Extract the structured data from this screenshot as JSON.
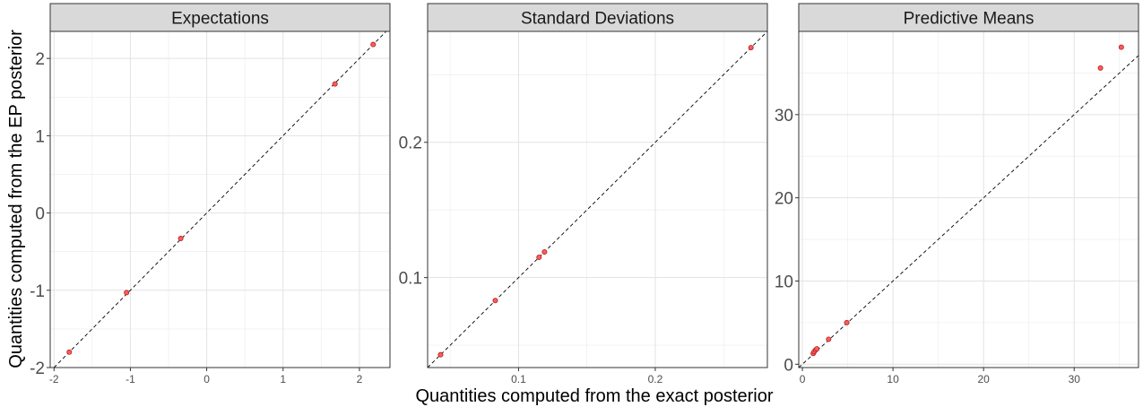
{
  "figure": {
    "xlabel": "Quantities computed from the exact posterior",
    "ylabel": "Quantities computed from the EP posterior"
  },
  "chart_data": [
    {
      "type": "scatter",
      "title": "Expectations",
      "xlim": [
        -2.05,
        2.4
      ],
      "ylim": [
        -2.0,
        2.35
      ],
      "xticks": [
        -2,
        -1,
        0,
        1,
        2
      ],
      "xtick_labels": [
        "-2",
        "-1",
        "0",
        "1",
        "2"
      ],
      "yticks": [
        -2,
        -1,
        0,
        1,
        2
      ],
      "ytick_labels": [
        "-2",
        "-1",
        "0",
        "1",
        "2"
      ],
      "points": [
        {
          "x": -1.8,
          "y": -1.8
        },
        {
          "x": -1.05,
          "y": -1.03
        },
        {
          "x": -0.34,
          "y": -0.33
        },
        {
          "x": 1.68,
          "y": 1.67
        },
        {
          "x": 2.18,
          "y": 2.18
        }
      ],
      "reference_line": "y = x",
      "grid": true
    },
    {
      "type": "scatter",
      "title": "Standard Deviations",
      "xlim": [
        0.0335,
        0.282
      ],
      "ylim": [
        0.0335,
        0.282
      ],
      "xticks": [
        0.1,
        0.2
      ],
      "xtick_labels": [
        "0.1",
        "0.2"
      ],
      "yticks": [
        0.1,
        0.2
      ],
      "ytick_labels": [
        "0.1",
        "0.2"
      ],
      "points": [
        {
          "x": 0.043,
          "y": 0.043
        },
        {
          "x": 0.083,
          "y": 0.083
        },
        {
          "x": 0.115,
          "y": 0.115
        },
        {
          "x": 0.119,
          "y": 0.119
        },
        {
          "x": 0.27,
          "y": 0.27
        }
      ],
      "reference_line": "y = x",
      "grid": true
    },
    {
      "type": "scatter",
      "title": "Predictive Means",
      "xlim": [
        -0.4,
        37.1
      ],
      "ylim": [
        -0.4,
        40.0
      ],
      "xticks": [
        0,
        10,
        20,
        30
      ],
      "xtick_labels": [
        "0",
        "10",
        "20",
        "30"
      ],
      "yticks": [
        0,
        10,
        20,
        30
      ],
      "ytick_labels": [
        "0",
        "10",
        "20",
        "30"
      ],
      "points": [
        {
          "x": 1.2,
          "y": 1.3
        },
        {
          "x": 1.3,
          "y": 1.5
        },
        {
          "x": 1.45,
          "y": 1.7
        },
        {
          "x": 1.6,
          "y": 1.85
        },
        {
          "x": 2.9,
          "y": 3.0
        },
        {
          "x": 4.9,
          "y": 5.0
        },
        {
          "x": 32.9,
          "y": 35.6
        },
        {
          "x": 35.2,
          "y": 38.1
        }
      ],
      "reference_line": "y = x",
      "grid": true
    }
  ]
}
